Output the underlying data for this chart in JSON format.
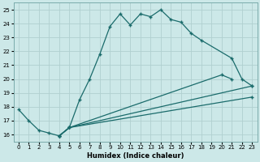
{
  "xlabel": "Humidex (Indice chaleur)",
  "xlim": [
    -0.5,
    23.5
  ],
  "ylim": [
    15.5,
    25.5
  ],
  "xticks": [
    0,
    1,
    2,
    3,
    4,
    5,
    6,
    7,
    8,
    9,
    10,
    11,
    12,
    13,
    14,
    15,
    16,
    17,
    18,
    19,
    20,
    21,
    22,
    23
  ],
  "yticks": [
    16,
    17,
    18,
    19,
    20,
    21,
    22,
    23,
    24,
    25
  ],
  "background_color": "#cce8e8",
  "grid_color": "#b0d0d0",
  "line_color": "#1a6b6b",
  "series": [
    {
      "x": [
        0,
        1,
        2,
        3,
        4,
        5,
        6,
        7,
        8,
        9,
        10,
        11,
        12,
        13,
        14,
        15,
        16,
        17,
        18,
        21,
        22,
        23
      ],
      "y": [
        17.8,
        17.0,
        16.3,
        16.1,
        15.9,
        16.5,
        18.5,
        20.0,
        21.8,
        23.8,
        24.7,
        23.9,
        24.7,
        24.5,
        25.0,
        24.3,
        24.1,
        23.3,
        22.8,
        21.5,
        20.0,
        19.5
      ]
    },
    {
      "x": [
        4,
        5,
        23
      ],
      "y": [
        15.9,
        16.5,
        19.5
      ]
    },
    {
      "x": [
        4,
        5,
        20,
        21
      ],
      "y": [
        15.9,
        16.5,
        20.3,
        20.0
      ]
    },
    {
      "x": [
        4,
        5,
        23
      ],
      "y": [
        15.9,
        16.5,
        18.7
      ]
    }
  ]
}
